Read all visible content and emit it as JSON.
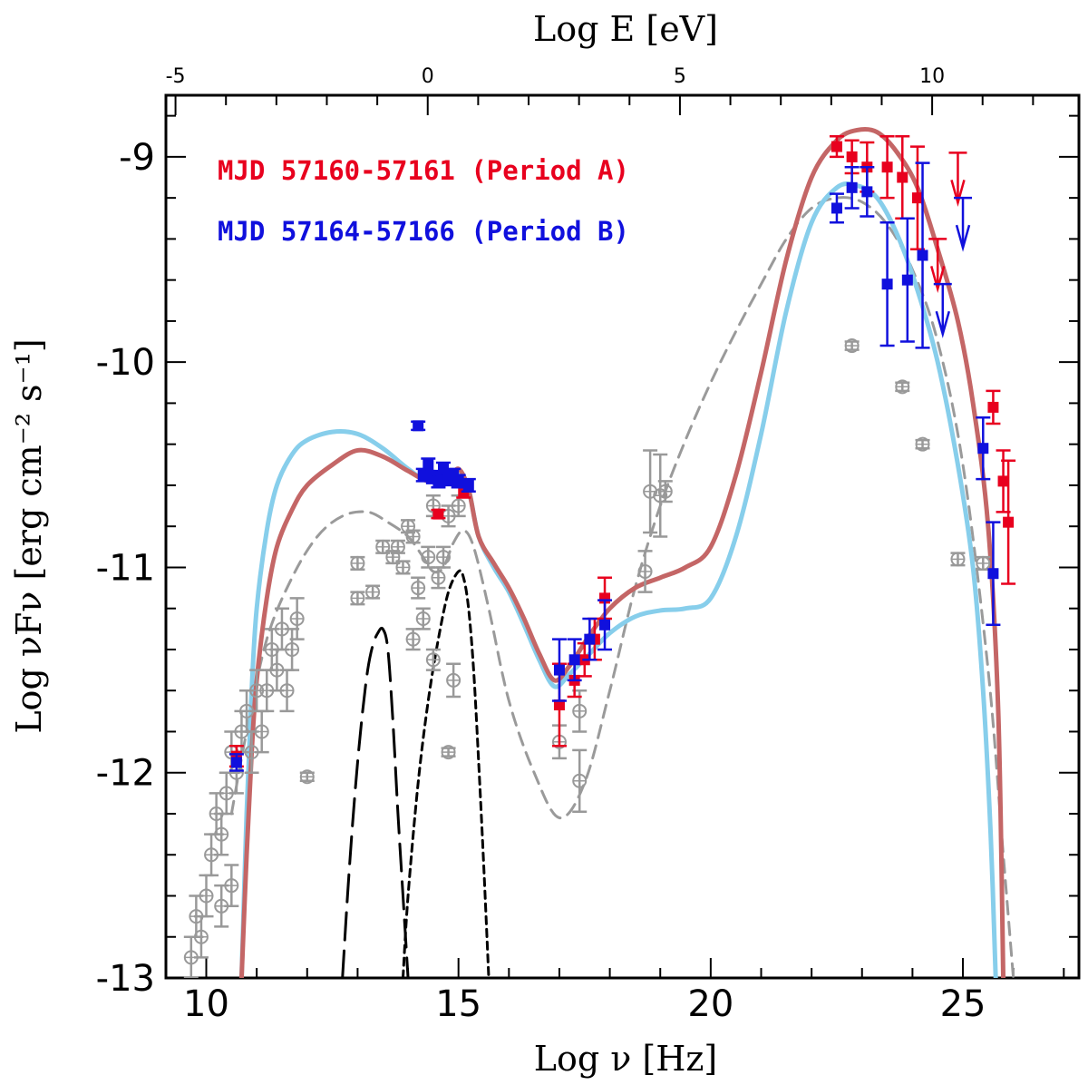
{
  "chart_data": {
    "type": "scatter",
    "title": "",
    "xlabel": "Log ν  [Hz]",
    "ylabel": "Log νFν  [erg cm⁻² s⁻¹]",
    "top_xlabel": "Log E [eV]",
    "xlim": [
      9.2,
      27.3
    ],
    "ylim": [
      -13,
      -8.7
    ],
    "top_xlim": [
      -5.19,
      12.91
    ],
    "x_ticks": [
      10,
      15,
      20,
      25
    ],
    "x_tick_labels": [
      "10",
      "15",
      "20",
      "25"
    ],
    "y_ticks": [
      -13,
      -12,
      -11,
      -10,
      -9
    ],
    "y_tick_labels": [
      "-13",
      "-12",
      "-11",
      "-10",
      "-9"
    ],
    "top_ticks": [
      -5,
      0,
      5,
      10
    ],
    "top_tick_labels": [
      "-5",
      "0",
      "5",
      "10"
    ],
    "legend": [
      {
        "label": "MJD 57160-57161 (Period A)",
        "color": "#e8001e"
      },
      {
        "label": "MJD 57164-57166 (Period B)",
        "color": "#1010dd"
      }
    ],
    "series": [
      {
        "name": "MJD 57160-57161 (Period A) data",
        "color": "#e8001e",
        "marker": "filled-square",
        "points": [
          [
            10.6,
            -11.92,
            0.05
          ],
          [
            14.6,
            -10.74,
            0.02
          ],
          [
            15.1,
            -10.63,
            0.03
          ],
          [
            17.0,
            -11.67,
            0.2
          ],
          [
            17.3,
            -11.55,
            0.08
          ],
          [
            17.5,
            -11.45,
            0.08
          ],
          [
            17.7,
            -11.35,
            0.1
          ],
          [
            17.9,
            -11.15,
            0.1
          ],
          [
            22.5,
            -8.95,
            0.05
          ],
          [
            22.8,
            -9.0,
            0.08
          ],
          [
            23.1,
            -9.05,
            0.12
          ],
          [
            23.5,
            -9.05,
            0.15
          ],
          [
            23.8,
            -9.1,
            0.2
          ],
          [
            24.1,
            -9.2,
            0.25
          ],
          [
            25.6,
            -10.22,
            0.08
          ],
          [
            25.8,
            -10.58,
            0.15
          ],
          [
            25.9,
            -10.78,
            0.3
          ]
        ],
        "upper_limits": [
          [
            24.5,
            -9.4
          ],
          [
            24.9,
            -8.98
          ]
        ]
      },
      {
        "name": "MJD 57164-57166 (Period B) data",
        "color": "#1010dd",
        "marker": "filled-square",
        "points": [
          [
            10.6,
            -11.95,
            0.04
          ],
          [
            14.2,
            -10.31,
            0.02
          ],
          [
            14.3,
            -10.55,
            0.03
          ],
          [
            14.4,
            -10.5,
            0.03
          ],
          [
            14.5,
            -10.56,
            0.03
          ],
          [
            14.6,
            -10.58,
            0.03
          ],
          [
            14.7,
            -10.52,
            0.03
          ],
          [
            14.8,
            -10.57,
            0.03
          ],
          [
            14.9,
            -10.55,
            0.03
          ],
          [
            15.0,
            -10.58,
            0.03
          ],
          [
            15.2,
            -10.6,
            0.03
          ],
          [
            17.0,
            -11.5,
            0.15
          ],
          [
            17.3,
            -11.45,
            0.1
          ],
          [
            17.6,
            -11.35,
            0.1
          ],
          [
            17.9,
            -11.28,
            0.12
          ],
          [
            22.5,
            -9.25,
            0.07
          ],
          [
            22.8,
            -9.15,
            0.1
          ],
          [
            23.1,
            -9.17,
            0.12
          ],
          [
            23.5,
            -9.62,
            0.3
          ],
          [
            23.9,
            -9.6,
            0.3
          ],
          [
            24.2,
            -9.48,
            0.45
          ],
          [
            25.4,
            -10.42,
            0.15
          ],
          [
            25.6,
            -11.03,
            0.25
          ]
        ],
        "upper_limits": [
          [
            24.6,
            -9.62
          ],
          [
            25.0,
            -9.2
          ]
        ]
      },
      {
        "name": "Archival data",
        "color": "#999999",
        "marker": "open-circle",
        "points": [
          [
            9.7,
            -12.9,
            0.1
          ],
          [
            9.8,
            -12.7,
            0.1
          ],
          [
            9.9,
            -12.8,
            0.1
          ],
          [
            10.0,
            -12.6,
            0.1
          ],
          [
            10.1,
            -12.4,
            0.1
          ],
          [
            10.2,
            -12.2,
            0.1
          ],
          [
            10.3,
            -12.3,
            0.1
          ],
          [
            10.4,
            -12.1,
            0.1
          ],
          [
            10.5,
            -11.9,
            0.1
          ],
          [
            10.6,
            -12.0,
            0.1
          ],
          [
            10.7,
            -11.8,
            0.1
          ],
          [
            10.8,
            -11.7,
            0.1
          ],
          [
            10.9,
            -11.9,
            0.1
          ],
          [
            11.0,
            -11.6,
            0.1
          ],
          [
            11.1,
            -11.8,
            0.1
          ],
          [
            11.2,
            -11.6,
            0.1
          ],
          [
            11.3,
            -11.4,
            0.1
          ],
          [
            11.4,
            -11.5,
            0.1
          ],
          [
            11.5,
            -11.3,
            0.1
          ],
          [
            11.6,
            -11.6,
            0.1
          ],
          [
            11.7,
            -11.4,
            0.1
          ],
          [
            11.8,
            -11.25,
            0.1
          ],
          [
            12.0,
            -12.02,
            0.02
          ],
          [
            10.3,
            -12.65,
            0.1
          ],
          [
            10.5,
            -12.55,
            0.1
          ],
          [
            13.0,
            -11.15,
            0.03
          ],
          [
            13.0,
            -10.98,
            0.03
          ],
          [
            13.3,
            -11.12,
            0.03
          ],
          [
            13.5,
            -10.9,
            0.03
          ],
          [
            13.7,
            -10.95,
            0.03
          ],
          [
            13.8,
            -10.9,
            0.03
          ],
          [
            13.9,
            -11.0,
            0.03
          ],
          [
            14.0,
            -10.8,
            0.03
          ],
          [
            14.1,
            -10.85,
            0.03
          ],
          [
            14.1,
            -11.35,
            0.05
          ],
          [
            14.2,
            -11.1,
            0.05
          ],
          [
            14.3,
            -11.25,
            0.05
          ],
          [
            14.4,
            -10.95,
            0.05
          ],
          [
            14.5,
            -11.45,
            0.05
          ],
          [
            14.5,
            -10.7,
            0.05
          ],
          [
            14.6,
            -11.05,
            0.05
          ],
          [
            14.7,
            -10.95,
            0.05
          ],
          [
            14.8,
            -10.75,
            0.05
          ],
          [
            14.8,
            -11.9,
            0.02
          ],
          [
            15.0,
            -10.7,
            0.05
          ],
          [
            14.9,
            -11.55,
            0.08
          ],
          [
            17.0,
            -11.85,
            0.08
          ],
          [
            17.4,
            -11.7,
            0.1
          ],
          [
            17.4,
            -12.04,
            0.15
          ],
          [
            18.7,
            -11.02,
            0.1
          ],
          [
            18.8,
            -10.63,
            0.2
          ],
          [
            19.0,
            -10.65,
            0.2
          ],
          [
            19.1,
            -10.63,
            0.05
          ],
          [
            22.8,
            -9.92,
            0.02
          ],
          [
            23.8,
            -10.12,
            0.02
          ],
          [
            24.2,
            -10.4,
            0.02
          ],
          [
            24.9,
            -10.96,
            0.03
          ],
          [
            25.4,
            -10.98,
            0.03
          ]
        ]
      }
    ],
    "models": [
      {
        "name": "Period A model",
        "color": "#c46666",
        "style": "solid",
        "x": [
          10.7,
          10.8,
          10.9,
          11.0,
          11.2,
          11.4,
          11.7,
          12.0,
          12.5,
          13.0,
          13.5,
          14.0,
          14.4,
          14.8,
          15.0,
          15.2,
          15.4,
          15.7,
          16.0,
          16.3,
          16.6,
          16.9,
          17.2,
          17.6,
          18.0,
          18.5,
          19.0,
          19.5,
          20.0,
          20.5,
          21.0,
          21.5,
          22.0,
          22.5,
          22.9,
          23.3,
          23.7,
          24.1,
          24.5,
          24.9,
          25.2,
          25.5,
          25.7,
          25.8
        ],
        "y": [
          -13.0,
          -12.4,
          -11.9,
          -11.55,
          -11.15,
          -10.9,
          -10.72,
          -10.6,
          -10.5,
          -10.43,
          -10.46,
          -10.53,
          -10.58,
          -10.57,
          -10.52,
          -10.62,
          -10.85,
          -10.98,
          -11.1,
          -11.25,
          -11.42,
          -11.55,
          -11.48,
          -11.33,
          -11.2,
          -11.1,
          -11.05,
          -11.0,
          -10.9,
          -10.55,
          -10.05,
          -9.5,
          -9.1,
          -8.92,
          -8.87,
          -8.88,
          -8.98,
          -9.15,
          -9.45,
          -9.8,
          -10.2,
          -10.8,
          -11.7,
          -13.0
        ]
      },
      {
        "name": "Period B model",
        "color": "#87ceeb",
        "style": "solid",
        "x": [
          10.7,
          10.8,
          10.9,
          11.0,
          11.2,
          11.4,
          11.7,
          12.0,
          12.5,
          13.0,
          13.5,
          14.0,
          14.4,
          14.8,
          15.0,
          15.2,
          15.4,
          15.7,
          16.0,
          16.3,
          16.6,
          16.9,
          17.2,
          17.6,
          18.0,
          18.5,
          19.0,
          19.5,
          20.0,
          20.5,
          21.0,
          21.5,
          22.0,
          22.5,
          22.9,
          23.3,
          23.7,
          24.1,
          24.5,
          24.9,
          25.2,
          25.4,
          25.55,
          25.65
        ],
        "y": [
          -13.0,
          -12.2,
          -11.6,
          -11.2,
          -10.82,
          -10.6,
          -10.45,
          -10.38,
          -10.34,
          -10.35,
          -10.42,
          -10.52,
          -10.58,
          -10.56,
          -10.53,
          -10.62,
          -10.85,
          -11.0,
          -11.12,
          -11.28,
          -11.45,
          -11.58,
          -11.52,
          -11.42,
          -11.32,
          -11.24,
          -11.21,
          -11.2,
          -11.15,
          -10.85,
          -10.35,
          -9.75,
          -9.32,
          -9.15,
          -9.14,
          -9.2,
          -9.38,
          -9.65,
          -10.0,
          -10.5,
          -11.0,
          -11.6,
          -12.3,
          -13.0
        ]
      },
      {
        "name": "Model components (grey dashed)",
        "color": "#9a9a9a",
        "style": "dashed",
        "x": [
          10.5,
          10.8,
          11.2,
          11.7,
          12.2,
          12.7,
          13.2,
          13.6,
          14.0,
          14.3,
          14.5,
          14.7,
          14.9,
          15.1,
          15.3,
          15.6,
          16.0,
          16.5,
          17.0,
          17.5,
          18.0,
          18.5,
          19.0,
          19.5,
          20.0,
          20.5,
          21.0,
          21.5,
          22.0,
          22.5,
          23.0,
          23.5,
          24.0,
          24.5,
          25.0,
          25.5,
          25.8,
          26.0
        ],
        "y": [
          -12.2,
          -11.8,
          -11.35,
          -11.05,
          -10.85,
          -10.75,
          -10.73,
          -10.78,
          -10.85,
          -10.95,
          -11.02,
          -11.0,
          -10.88,
          -10.82,
          -10.9,
          -11.2,
          -11.65,
          -12.0,
          -12.22,
          -12.05,
          -11.6,
          -11.1,
          -10.7,
          -10.38,
          -10.1,
          -9.85,
          -9.62,
          -9.4,
          -9.25,
          -9.2,
          -9.22,
          -9.33,
          -9.55,
          -9.9,
          -10.5,
          -11.5,
          -12.4,
          -13.0
        ]
      },
      {
        "name": "Thermal component (black long dashed)",
        "color": "#000000",
        "style": "longdash",
        "x": [
          12.7,
          12.8,
          12.9,
          13.0,
          13.1,
          13.2,
          13.3,
          13.4,
          13.5,
          13.6,
          13.7,
          13.8,
          13.9,
          14.0
        ],
        "y": [
          -13.0,
          -12.6,
          -12.25,
          -11.95,
          -11.7,
          -11.5,
          -11.38,
          -11.32,
          -11.3,
          -11.4,
          -11.75,
          -12.2,
          -12.6,
          -13.0
        ]
      },
      {
        "name": "Thermal component (black short dashed)",
        "color": "#000000",
        "style": "shortdash",
        "x": [
          13.9,
          14.0,
          14.2,
          14.4,
          14.6,
          14.8,
          15.0,
          15.1,
          15.2,
          15.3,
          15.4,
          15.5,
          15.6
        ],
        "y": [
          -13.0,
          -12.6,
          -12.05,
          -11.65,
          -11.35,
          -11.12,
          -11.02,
          -11.05,
          -11.2,
          -11.5,
          -11.95,
          -12.45,
          -13.0
        ]
      }
    ]
  }
}
